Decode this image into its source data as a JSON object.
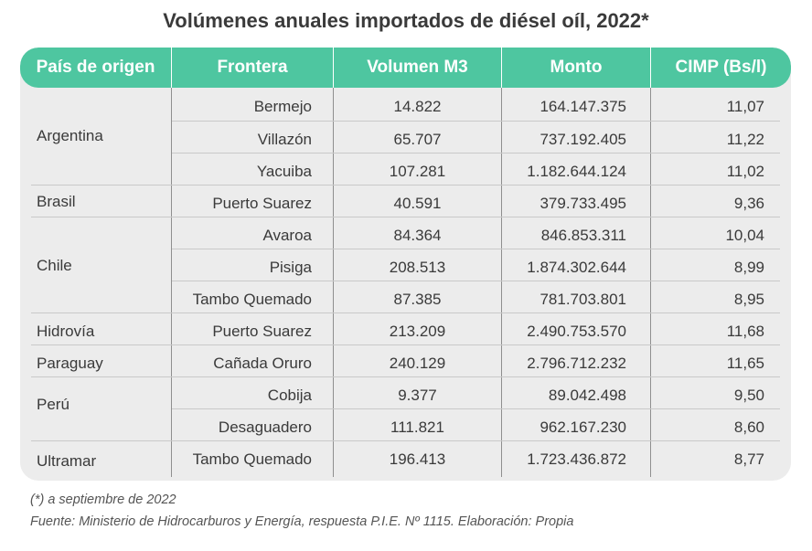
{
  "title": "Volúmenes anuales importados de diésel oíl, 2022*",
  "headers": [
    "País de origen",
    "Frontera",
    "Volumen M3",
    "Monto",
    "CIMP (Bs/l)"
  ],
  "rows": [
    {
      "country": "Argentina",
      "frontera": "Bermejo",
      "volumen": "14.822",
      "monto": "164.147.375",
      "cimp": "11,07"
    },
    {
      "country": "",
      "frontera": "Villazón",
      "volumen": "65.707",
      "monto": "737.192.405",
      "cimp": "11,22"
    },
    {
      "country": "",
      "frontera": "Yacuiba",
      "volumen": "107.281",
      "monto": "1.182.644.124",
      "cimp": "11,02"
    },
    {
      "country": "Brasil",
      "frontera": "Puerto Suarez",
      "volumen": "40.591",
      "monto": "379.733.495",
      "cimp": "9,36"
    },
    {
      "country": "Chile",
      "frontera": "Avaroa",
      "volumen": "84.364",
      "monto": "846.853.311",
      "cimp": "10,04"
    },
    {
      "country": "",
      "frontera": "Pisiga",
      "volumen": "208.513",
      "monto": "1.874.302.644",
      "cimp": "8,99"
    },
    {
      "country": "",
      "frontera": "Tambo Quemado",
      "volumen": "87.385",
      "monto": "781.703.801",
      "cimp": "8,95"
    },
    {
      "country": "Hidrovía",
      "frontera": "Puerto Suarez",
      "volumen": "213.209",
      "monto": "2.490.753.570",
      "cimp": "11,68"
    },
    {
      "country": "Paraguay",
      "frontera": "Cañada Oruro",
      "volumen": "240.129",
      "monto": "2.796.712.232",
      "cimp": "11,65"
    },
    {
      "country": "Perú",
      "frontera": "Cobija",
      "volumen": "9.377",
      "monto": "89.042.498",
      "cimp": "9,50"
    },
    {
      "country": "",
      "frontera": "Desaguadero",
      "volumen": "111.821",
      "monto": "962.167.230",
      "cimp": "8,60"
    },
    {
      "country": "Ultramar",
      "frontera": "Tambo Quemado",
      "volumen": "196.413",
      "monto": "1.723.436.872",
      "cimp": "8,77"
    }
  ],
  "footnote": "(*) a septiembre de 2022",
  "source": "Fuente: Ministerio de Hidrocarburos y Energía, respuesta P.I.E. Nº 1115. Elaboración: Propia"
}
